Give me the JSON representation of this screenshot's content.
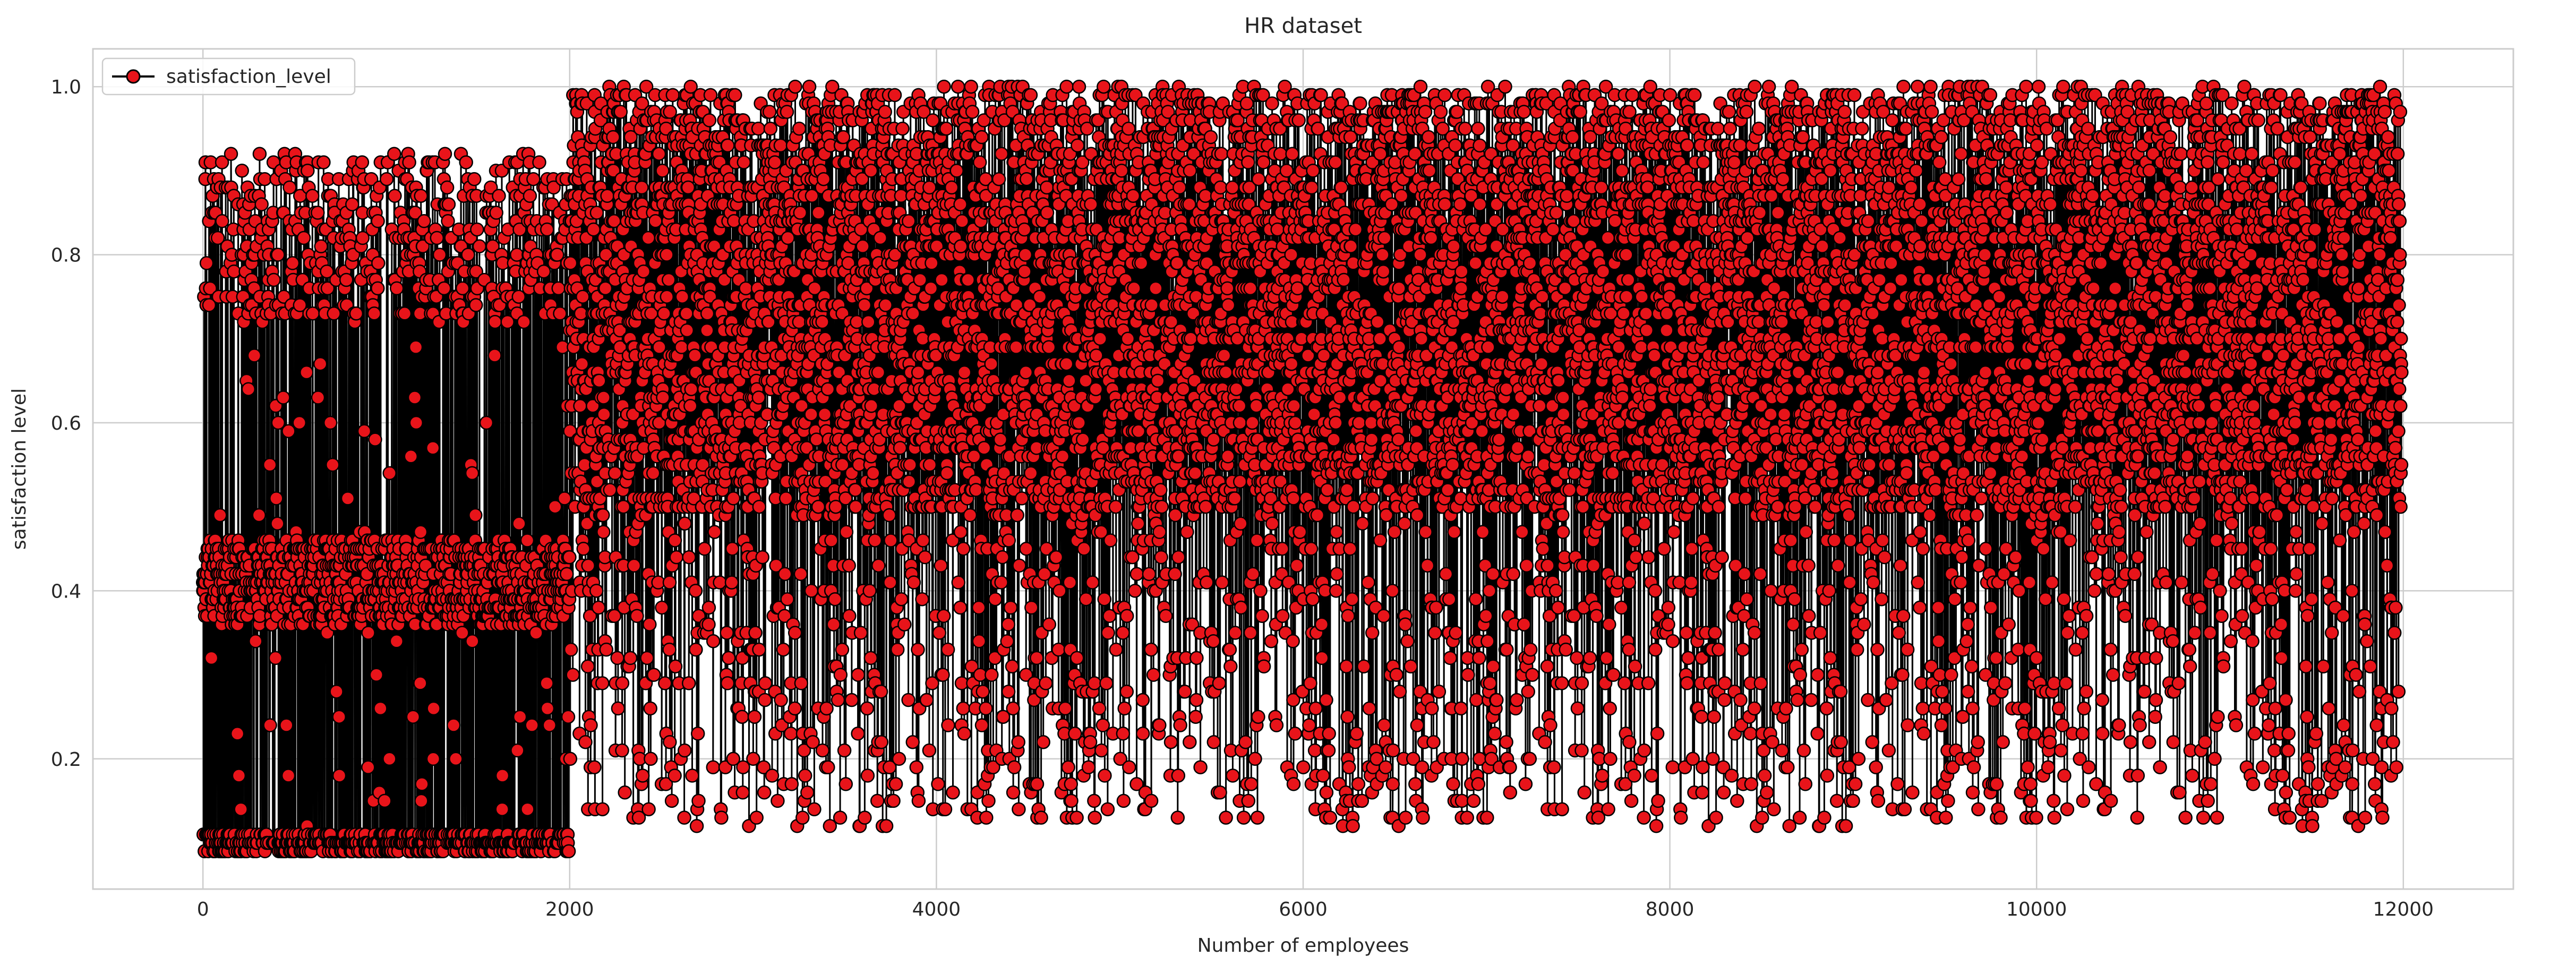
{
  "chart_data": {
    "type": "line",
    "title": "HR dataset",
    "xlabel": "Number of employees",
    "ylabel": "satisfaction level",
    "xlim": [
      -600,
      12600
    ],
    "ylim": [
      0.045,
      1.045
    ],
    "xticks": [
      0,
      2000,
      4000,
      6000,
      8000,
      10000,
      12000
    ],
    "xtick_labels": [
      "0",
      "2000",
      "4000",
      "6000",
      "8000",
      "10000",
      "12000"
    ],
    "yticks": [
      0.2,
      0.4,
      0.6,
      0.8,
      1.0
    ],
    "ytick_labels": [
      "0.2",
      "0.4",
      "0.6",
      "0.8",
      "1.0"
    ],
    "grid": true,
    "legend_position": "upper left",
    "n_points": 11991,
    "series": [
      {
        "name": "satisfaction_level",
        "line_color": "#000000",
        "marker": "circle",
        "marker_face": "#e8141a",
        "marker_edge": "#000000",
        "segments": [
          {
            "x_range": [
              0,
              1999
            ],
            "step": 1,
            "values_by_band": [
              {
                "range": [
                  0.09,
                  0.11
                ],
                "weight": 0.28
              },
              {
                "range": [
                  0.36,
                  0.46
                ],
                "weight": 0.43
              },
              {
                "range": [
                  0.72,
                  0.92
                ],
                "weight": 0.23
              },
              {
                "range": [
                  0.12,
                  0.7
                ],
                "weight": 0.06
              }
            ]
          },
          {
            "x_range": [
              2000,
              11990
            ],
            "step": 1,
            "values_by_band": [
              {
                "range": [
                  0.49,
                  1.0
                ],
                "weight": 0.84
              },
              {
                "range": [
                  0.12,
                  0.48
                ],
                "weight": 0.16
              }
            ]
          }
        ]
      }
    ]
  },
  "palette": {
    "background": "#ffffff",
    "grid": "#cccccc",
    "axes_edge": "#cccccc",
    "text": "#262626"
  }
}
